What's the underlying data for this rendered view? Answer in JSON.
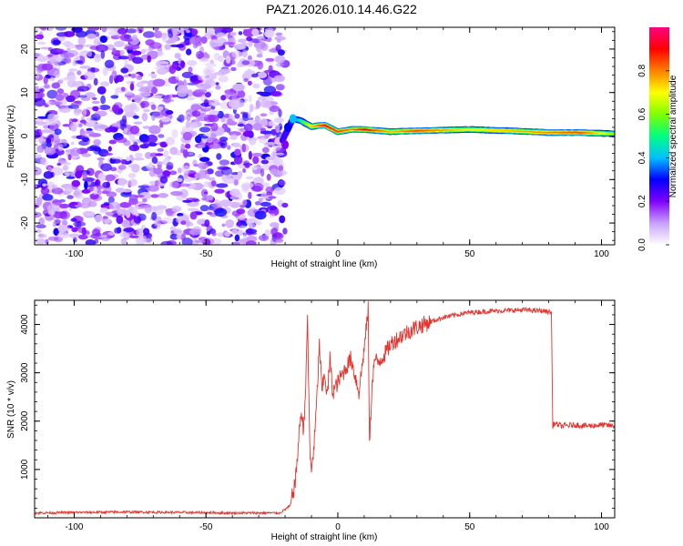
{
  "title": "PAZ1.2026.010.14.46.G22",
  "chart_data": [
    {
      "type": "heatmap",
      "xlabel": "Height of straight line (km)",
      "ylabel": "Frequency (Hz)",
      "xlim": [
        -115,
        105
      ],
      "ylim": [
        -25,
        25
      ],
      "x_ticks": [
        -100,
        -50,
        0,
        50,
        100
      ],
      "y_ticks": [
        -20,
        -10,
        0,
        10,
        20
      ],
      "colorbar": {
        "label": "Normalized spectral amplitude",
        "range": [
          0,
          1
        ],
        "ticks": [
          "0.0",
          "0.2",
          "0.4",
          "0.6",
          "0.8"
        ],
        "tick_values": [
          0,
          0.2,
          0.4,
          0.6,
          0.8
        ],
        "colors": [
          "#ffffff",
          "#c8a0ff",
          "#8000ff",
          "#0000ff",
          "#00c0ff",
          "#00ff80",
          "#80ff00",
          "#ffff00",
          "#ff8000",
          "#ff0000",
          "#ff0080"
        ]
      },
      "noise_region": {
        "x": [
          -115,
          -20
        ],
        "y": [
          -25,
          25
        ],
        "amplitude": [
          0.05,
          0.3
        ]
      },
      "signal_ridge": [
        {
          "x": -21,
          "f": -1,
          "a": 0.22
        },
        {
          "x": -17,
          "f": 4,
          "a": 0.3
        },
        {
          "x": -14,
          "f": 3.5,
          "a": 0.5
        },
        {
          "x": -10,
          "f": 2.2,
          "a": 0.75
        },
        {
          "x": -5,
          "f": 2.5,
          "a": 0.9
        },
        {
          "x": 0,
          "f": 1,
          "a": 0.85
        },
        {
          "x": 5,
          "f": 1.5,
          "a": 0.8
        },
        {
          "x": 10,
          "f": 1.5,
          "a": 0.9
        },
        {
          "x": 20,
          "f": 1,
          "a": 0.75
        },
        {
          "x": 30,
          "f": 1.2,
          "a": 0.85
        },
        {
          "x": 50,
          "f": 1.5,
          "a": 0.7
        },
        {
          "x": 65,
          "f": 1.2,
          "a": 0.75
        },
        {
          "x": 80,
          "f": 0.8,
          "a": 0.8
        },
        {
          "x": 92,
          "f": 0.8,
          "a": 0.85
        },
        {
          "x": 105,
          "f": 0.5,
          "a": 0.6
        }
      ]
    },
    {
      "type": "line",
      "xlabel": "Height of straight line (km)",
      "ylabel": "SNR (10 * v/v)",
      "xlim": [
        -115,
        105
      ],
      "ylim": [
        0,
        4500
      ],
      "x_ticks": [
        -100,
        -50,
        0,
        50,
        100
      ],
      "y_ticks": [
        1000,
        2000,
        3000,
        4000
      ],
      "grid": false,
      "series": [
        {
          "color": "#e8322c",
          "x": [
            -115,
            -100,
            -80,
            -60,
            -40,
            -22,
            -18,
            -16,
            -15,
            -14,
            -13,
            -12,
            -11.5,
            -11,
            -10.5,
            -10,
            -9,
            -8,
            -7,
            -6,
            -5,
            -4,
            -3,
            -2,
            0,
            2,
            5,
            8,
            10,
            11.5,
            12,
            13,
            14,
            15,
            18,
            20,
            25,
            30,
            35,
            40,
            45,
            50,
            60,
            70,
            78,
            81,
            81.5,
            82,
            85,
            90,
            95,
            100,
            105
          ],
          "y": [
            100,
            110,
            120,
            110,
            100,
            100,
            250,
            800,
            1500,
            2200,
            1800,
            3000,
            4200,
            2500,
            1200,
            1000,
            1500,
            2400,
            3600,
            2600,
            3000,
            2500,
            3300,
            2600,
            2800,
            3000,
            3300,
            2600,
            3500,
            4300,
            1500,
            2800,
            3300,
            3200,
            3400,
            3600,
            3800,
            3950,
            4050,
            4150,
            4200,
            4250,
            4280,
            4300,
            4280,
            4250,
            1900,
            1950,
            1900,
            1920,
            1900,
            1920,
            1900
          ]
        }
      ]
    }
  ]
}
